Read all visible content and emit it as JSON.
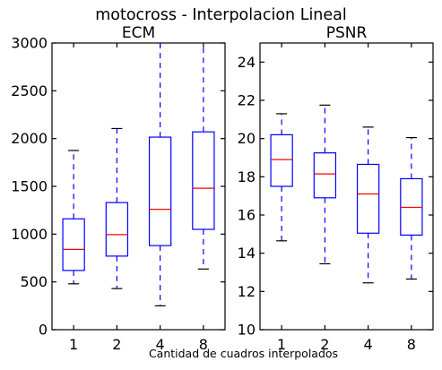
{
  "figure": {
    "suptitle": "motocross - Interpolacion Lineal",
    "xlabel": "Cantidad de cuadros interpolados"
  },
  "chart_data": [
    {
      "type": "boxplot",
      "title": "ECM",
      "xlabel": "",
      "ylabel": "",
      "categories": [
        "1",
        "2",
        "4",
        "8"
      ],
      "ylim": [
        0,
        3000
      ],
      "yticks": [
        0,
        500,
        1000,
        1500,
        2000,
        2500,
        3000
      ],
      "grid": false,
      "colors": {
        "box": "#0000ff",
        "median": "#ff0000",
        "whisker": "#0000ff",
        "cap": "#000000"
      },
      "boxes": [
        {
          "category": "1",
          "whislo": 480,
          "q1": 620,
          "median": 840,
          "q3": 1160,
          "whishi": 1875
        },
        {
          "category": "2",
          "whislo": 430,
          "q1": 770,
          "median": 995,
          "q3": 1330,
          "whishi": 2105
        },
        {
          "category": "4",
          "whislo": 250,
          "q1": 880,
          "median": 1260,
          "q3": 2015,
          "whishi": 3000
        },
        {
          "category": "8",
          "whislo": 635,
          "q1": 1050,
          "median": 1480,
          "q3": 2070,
          "whishi": 3000
        }
      ]
    },
    {
      "type": "boxplot",
      "title": "PSNR",
      "xlabel": "",
      "ylabel": "",
      "categories": [
        "1",
        "2",
        "4",
        "8"
      ],
      "ylim": [
        10,
        25
      ],
      "yticks": [
        10,
        12,
        14,
        16,
        18,
        20,
        22,
        24
      ],
      "grid": false,
      "colors": {
        "box": "#0000ff",
        "median": "#ff0000",
        "whisker": "#0000ff",
        "cap": "#000000"
      },
      "boxes": [
        {
          "category": "1",
          "whislo": 14.65,
          "q1": 17.5,
          "median": 18.9,
          "q3": 20.2,
          "whishi": 21.3
        },
        {
          "category": "2",
          "whislo": 13.45,
          "q1": 16.9,
          "median": 18.15,
          "q3": 19.25,
          "whishi": 21.75
        },
        {
          "category": "4",
          "whislo": 12.45,
          "q1": 15.05,
          "median": 17.1,
          "q3": 18.65,
          "whishi": 20.6
        },
        {
          "category": "8",
          "whislo": 12.65,
          "q1": 14.95,
          "median": 16.4,
          "q3": 17.9,
          "whishi": 20.05
        }
      ]
    }
  ]
}
